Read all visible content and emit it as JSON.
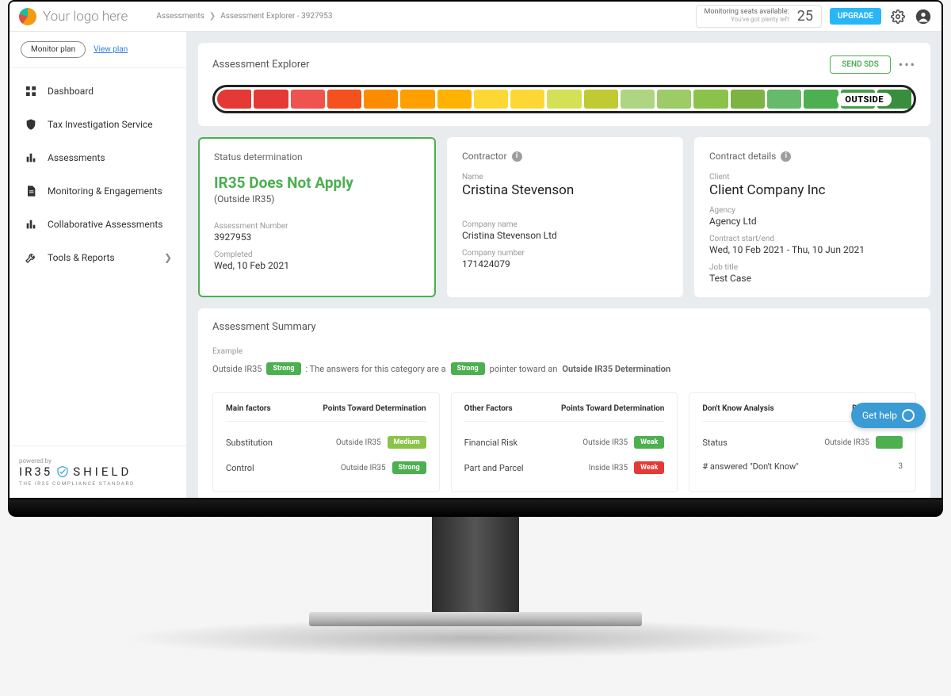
{
  "header": {
    "logo_text": "Your logo here",
    "breadcrumbs": [
      "Assessments",
      "Assessment Explorer - 3927953"
    ],
    "seats_label": "Monitoring seats available:",
    "seats_sub": "You've got plenty left",
    "seats_count": "25",
    "upgrade": "UPGRADE"
  },
  "sidebar": {
    "monitor_plan": "Monitor plan",
    "view_plan": "View plan",
    "items": [
      {
        "label": "Dashboard",
        "icon": "dashboard"
      },
      {
        "label": "Tax Investigation Service",
        "icon": "shield"
      },
      {
        "label": "Assessments",
        "icon": "chart"
      },
      {
        "label": "Monitoring & Engagements",
        "icon": "doc"
      },
      {
        "label": "Collaborative Assessments",
        "icon": "chart"
      },
      {
        "label": "Tools & Reports",
        "icon": "tools",
        "chevron": true
      }
    ],
    "powered_by": "powered by",
    "brand": "IR35 SHIELD",
    "brand_tag": "THE IR35 COMPLIANCE STANDARD"
  },
  "explorer": {
    "title": "Assessment Explorer",
    "send_sds": "SEND SDS",
    "gauge_colors": [
      "#e53935",
      "#e53935",
      "#ef5350",
      "#f4511e",
      "#fb8c00",
      "#ffa000",
      "#ffb300",
      "#fdd835",
      "#fdd835",
      "#d4e157",
      "#c0ca33",
      "#aed581",
      "#9ccc65",
      "#8bc34a",
      "#7cb342",
      "#66bb6a",
      "#4caf50",
      "#43a047",
      "#388e3c"
    ],
    "gauge_label": "OUTSIDE"
  },
  "status_card": {
    "title": "Status determination",
    "heading": "IR35 Does Not Apply",
    "sub": "(Outside IR35)",
    "assessment_label": "Assessment Number",
    "assessment_value": "3927953",
    "completed_label": "Completed",
    "completed_value": "Wed, 10 Feb 2021"
  },
  "contractor_card": {
    "title": "Contractor",
    "name_label": "Name",
    "name_value": "Cristina Stevenson",
    "company_label": "Company name",
    "company_value": "Cristina Stevenson Ltd",
    "number_label": "Company number",
    "number_value": "171424079"
  },
  "contract_card": {
    "title": "Contract details",
    "client_label": "Client",
    "client_value": "Client Company Inc",
    "agency_label": "Agency",
    "agency_value": "Agency Ltd",
    "dates_label": "Contract start/end",
    "dates_value": "Wed, 10 Feb 2021 - Thu, 10 Jun 2021",
    "job_label": "Job title",
    "job_value": "Test Case"
  },
  "summary": {
    "title": "Assessment Summary",
    "example_label": "Example",
    "example_prefix": "Outside IR35",
    "example_pill": "Strong",
    "example_mid": ": The answers for this category are a",
    "example_pill2": "Strong",
    "example_tail": "pointer toward an",
    "example_bold": "Outside IR35 Determination",
    "main_factors": {
      "head_left": "Main factors",
      "head_right": "Points Toward Determination",
      "rows": [
        {
          "name": "Substitution",
          "det": "Outside IR35",
          "strength": "Medium",
          "color": "#8bc34a"
        },
        {
          "name": "Control",
          "det": "Outside IR35",
          "strength": "Strong",
          "color": "#4caf50"
        }
      ]
    },
    "other_factors": {
      "head_left": "Other Factors",
      "head_right": "Points Toward Determination",
      "rows": [
        {
          "name": "Financial Risk",
          "det": "Outside IR35",
          "strength": "Weak",
          "color": "#4caf50"
        },
        {
          "name": "Part and Parcel",
          "det": "Inside IR35",
          "strength": "Weak",
          "color": "#e53935"
        }
      ]
    },
    "dont_know": {
      "head_left": "Don't Know Analysis",
      "head_right": "Determination",
      "rows": [
        {
          "name": "Status",
          "det": "Outside IR35",
          "strength": "",
          "color": "#4caf50"
        },
        {
          "name": "# answered \"Don't Know\"",
          "det": "3",
          "strength": "",
          "color": ""
        }
      ]
    }
  },
  "help": "Get help"
}
